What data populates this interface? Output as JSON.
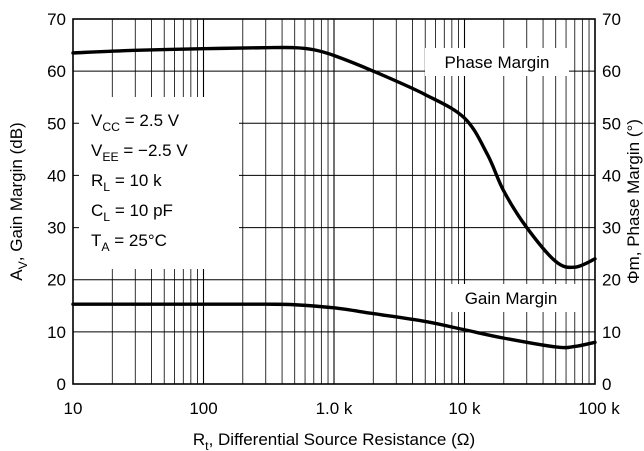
{
  "chart_data": {
    "type": "line",
    "x_scale": "log",
    "xlim": [
      10,
      100000
    ],
    "ylim_left": [
      0,
      70
    ],
    "ylim_right": [
      0,
      70
    ],
    "grid": true,
    "x_ticks": [
      {
        "value": 10,
        "label": "10"
      },
      {
        "value": 100,
        "label": "100"
      },
      {
        "value": 1000,
        "label": "1.0 k"
      },
      {
        "value": 10000,
        "label": "10 k"
      },
      {
        "value": 100000,
        "label": "100 k"
      }
    ],
    "y_ticks": [
      0,
      10,
      20,
      30,
      40,
      50,
      60,
      70
    ],
    "xlabel": {
      "main": "R",
      "sub": "t",
      "rest": ", Differential Source Resistance (Ω)"
    },
    "ylabel_left": {
      "main": "A",
      "sub": "V",
      "rest": ", Gain Margin (dB)"
    },
    "ylabel_right": "Φm, Phase Margin (°)",
    "conditions": [
      {
        "main": "V",
        "sub": "CC",
        "rest": " = 2.5 V"
      },
      {
        "main": "V",
        "sub": "EE",
        "rest": " = −2.5 V"
      },
      {
        "main": "R",
        "sub": "L",
        "rest": " = 10 k"
      },
      {
        "main": "C",
        "sub": "L",
        "rest": " = 10 pF"
      },
      {
        "main": "T",
        "sub": "A",
        "rest": " = 25°C"
      }
    ],
    "series": [
      {
        "name": "Phase Margin",
        "axis": "right",
        "x": [
          10,
          30,
          100,
          300,
          500,
          700,
          1000,
          2000,
          5000,
          10000,
          15000,
          20000,
          30000,
          50000,
          70000,
          100000
        ],
        "y": [
          63.5,
          64,
          64.3,
          64.5,
          64.5,
          64.1,
          63,
          60,
          55.5,
          51,
          44,
          37,
          30,
          23.5,
          22.4,
          24
        ]
      },
      {
        "name": "Gain Margin",
        "axis": "left",
        "x": [
          10,
          30,
          100,
          300,
          500,
          1000,
          2000,
          5000,
          10000,
          20000,
          50000,
          70000,
          100000
        ],
        "y": [
          15.3,
          15.3,
          15.3,
          15.3,
          15.2,
          14.6,
          13.5,
          12,
          10.4,
          8.8,
          7.1,
          7.2,
          8
        ]
      }
    ]
  }
}
